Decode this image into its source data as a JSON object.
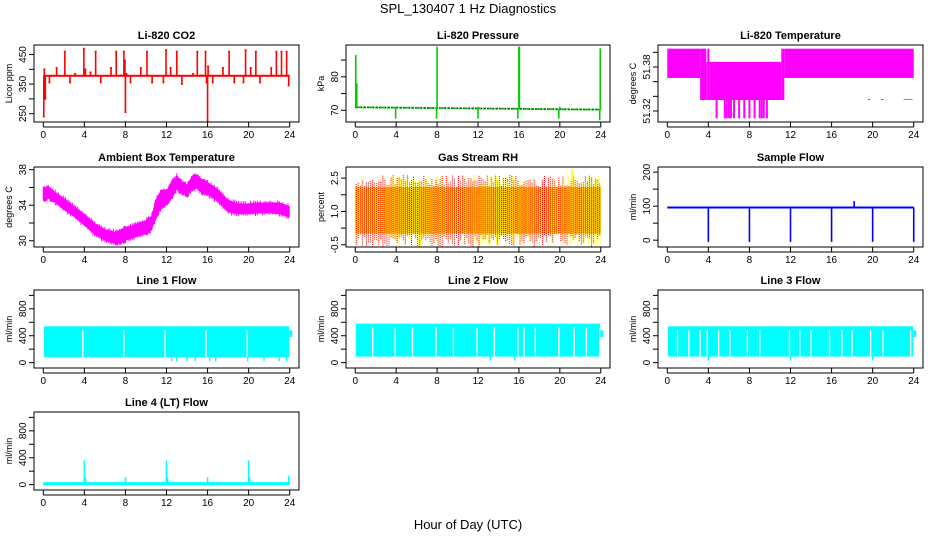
{
  "figure": {
    "title": "SPL_130407  1 Hz Diagnostics",
    "xlabel": "Hour of Day (UTC)"
  },
  "chart_data": [
    {
      "type": "line",
      "title": "Li-820 CO2",
      "ylabel": "Licor ppm",
      "color": "#ff0000",
      "xlim": [
        0,
        24
      ],
      "ylim": [
        222,
        482
      ],
      "xticks": [
        0,
        4,
        8,
        12,
        16,
        20,
        24
      ],
      "yticks": [
        250,
        300,
        350,
        400,
        450
      ],
      "ytick_labels": [
        "250",
        "",
        "350",
        "",
        "450"
      ],
      "baseline": 378,
      "noise": 3,
      "spikes": [
        [
          0.05,
          240
        ],
        [
          0.1,
          400
        ],
        [
          0.2,
          300
        ],
        [
          0.6,
          355
        ],
        [
          1.3,
          405
        ],
        [
          2.1,
          460
        ],
        [
          2.6,
          355
        ],
        [
          3.1,
          385
        ],
        [
          3.95,
          470
        ],
        [
          4.1,
          400
        ],
        [
          4.6,
          390
        ],
        [
          5.1,
          460
        ],
        [
          5.6,
          355
        ],
        [
          6.6,
          405
        ],
        [
          7.1,
          460
        ],
        [
          7.6,
          380
        ],
        [
          7.85,
          460
        ],
        [
          7.95,
          430
        ],
        [
          8.0,
          255
        ],
        [
          8.1,
          385
        ],
        [
          8.5,
          355
        ],
        [
          9.5,
          405
        ],
        [
          10.1,
          460
        ],
        [
          10.6,
          355
        ],
        [
          11.7,
          355
        ],
        [
          11.95,
          465
        ],
        [
          12.4,
          405
        ],
        [
          13.0,
          460
        ],
        [
          13.5,
          350
        ],
        [
          14.6,
          385
        ],
        [
          15.0,
          460
        ],
        [
          15.4,
          380
        ],
        [
          15.8,
          460
        ],
        [
          15.9,
          355
        ],
        [
          16.0,
          225
        ],
        [
          16.05,
          410
        ],
        [
          16.5,
          355
        ],
        [
          17.5,
          405
        ],
        [
          18.1,
          460
        ],
        [
          18.6,
          355
        ],
        [
          19.5,
          355
        ],
        [
          19.7,
          465
        ],
        [
          20.2,
          405
        ],
        [
          20.7,
          460
        ],
        [
          21.1,
          355
        ],
        [
          22.2,
          405
        ],
        [
          22.7,
          460
        ],
        [
          23.2,
          460
        ],
        [
          23.7,
          460
        ],
        [
          23.9,
          345
        ]
      ]
    },
    {
      "type": "line",
      "title": "Li-820 Pressure",
      "ylabel": "kPa",
      "color": "#00cc00",
      "xlim": [
        0,
        24
      ],
      "ylim": [
        66.5,
        89.5
      ],
      "xticks": [
        0,
        4,
        8,
        12,
        16,
        20,
        24
      ],
      "yticks": [
        70,
        75,
        80,
        85
      ],
      "ytick_labels": [
        "70",
        "",
        "80",
        ""
      ],
      "baseline_start": 70.9,
      "baseline_end": 70.2,
      "noise": 0.15,
      "spikes": [
        [
          0.05,
          86.5
        ],
        [
          0.15,
          78
        ],
        [
          3.95,
          67.5
        ],
        [
          4.05,
          71
        ],
        [
          8.0,
          89
        ],
        [
          7.95,
          67.5
        ],
        [
          12.0,
          67.5
        ],
        [
          12.05,
          71
        ],
        [
          15.9,
          67.5
        ],
        [
          16.0,
          89
        ],
        [
          16.05,
          89
        ],
        [
          19.9,
          67.5
        ],
        [
          20.0,
          71
        ],
        [
          23.9,
          67
        ],
        [
          23.95,
          88.5
        ]
      ]
    },
    {
      "type": "area",
      "title": "Li-820 Temperature",
      "ylabel": "degrees C",
      "color": "#ff00ff",
      "xlim": [
        0,
        24
      ],
      "ylim": [
        51.305,
        51.41
      ],
      "xticks": [
        0,
        4,
        8,
        12,
        16,
        20,
        24
      ],
      "yticks": [
        51.32,
        51.34,
        51.36,
        51.38,
        51.4
      ],
      "ytick_labels": [
        "51.32",
        "",
        "",
        "51.38",
        ""
      ],
      "bands": [
        {
          "x": [
            0.0,
            3.2
          ],
          "low": 51.365,
          "high": 51.405
        },
        {
          "x": [
            3.2,
            3.8
          ],
          "low": 51.335,
          "high": 51.405
        },
        {
          "x": [
            3.8,
            3.9
          ],
          "low": 51.335,
          "high": 51.387
        },
        {
          "x": [
            3.9,
            4.1
          ],
          "low": 51.335,
          "high": 51.405
        },
        {
          "x": [
            4.1,
            11.1
          ],
          "low": 51.335,
          "high": 51.387
        },
        {
          "x": [
            11.1,
            11.4
          ],
          "low": 51.335,
          "high": 51.405
        },
        {
          "x": [
            11.4,
            24.0
          ],
          "low": 51.365,
          "high": 51.405
        }
      ],
      "dips": [
        [
          4.8,
          51.31
        ],
        [
          5.6,
          51.31
        ],
        [
          5.8,
          51.31
        ],
        [
          6.0,
          51.31
        ],
        [
          6.2,
          51.31
        ],
        [
          6.5,
          51.31
        ],
        [
          7.0,
          51.31
        ],
        [
          7.5,
          51.31
        ],
        [
          8.0,
          51.31
        ],
        [
          8.5,
          51.31
        ],
        [
          9.0,
          51.31
        ],
        [
          9.2,
          51.31
        ],
        [
          9.4,
          51.31
        ],
        [
          9.7,
          51.31
        ],
        [
          19.6,
          51.335
        ],
        [
          19.7,
          51.335
        ],
        [
          20.9,
          51.335
        ],
        [
          21.0,
          51.335
        ],
        [
          23.1,
          51.335
        ],
        [
          23.3,
          51.335
        ],
        [
          23.5,
          51.335
        ],
        [
          23.7,
          51.335
        ],
        [
          23.8,
          51.335
        ]
      ]
    },
    {
      "type": "area",
      "title": "Ambient Box Temperature",
      "ylabel": "degrees C",
      "color": "#ff00ff",
      "xlim": [
        0,
        24
      ],
      "ylim": [
        29.3,
        38.3
      ],
      "xticks": [
        0,
        4,
        8,
        12,
        16,
        20,
        24
      ],
      "yticks": [
        30,
        32,
        34,
        36,
        38
      ],
      "ytick_labels": [
        "30",
        "",
        "34",
        "",
        "38"
      ],
      "x": [
        0,
        0.5,
        1,
        2,
        3,
        4,
        5,
        6,
        7,
        7.5,
        8,
        9,
        10,
        10.5,
        11,
        11.5,
        12,
        12.5,
        13,
        13.5,
        14,
        14.5,
        15,
        15.5,
        16,
        17,
        18,
        19,
        20,
        21,
        22,
        23,
        24
      ],
      "low": [
        34.6,
        34.8,
        34.4,
        33.5,
        32.7,
        31.7,
        30.7,
        30.0,
        29.7,
        29.8,
        30.0,
        30.4,
        30.8,
        31.1,
        32.6,
        33.8,
        34.0,
        34.8,
        35.8,
        35.4,
        35.1,
        35.8,
        35.9,
        35.3,
        35.2,
        34.4,
        33.2,
        33.0,
        33.0,
        33.1,
        33.1,
        33.0,
        32.6
      ],
      "high": [
        35.9,
        36.0,
        35.6,
        34.8,
        33.9,
        33.0,
        32.0,
        31.3,
        31.0,
        31.2,
        31.5,
        31.9,
        32.3,
        32.7,
        34.7,
        35.7,
        35.6,
        36.6,
        37.3,
        36.6,
        36.3,
        37.2,
        37.4,
        36.8,
        36.6,
        35.8,
        34.6,
        34.2,
        34.2,
        34.3,
        34.3,
        34.3,
        33.9
      ]
    },
    {
      "type": "area",
      "title": "Gas Stream RH",
      "ylabel": "percent",
      "colors": [
        "#ffa500",
        "#ff0000",
        "#ffff00"
      ],
      "color": "#ffa500",
      "xlim": [
        0,
        24
      ],
      "ylim": [
        -0.6,
        3.0
      ],
      "xticks": [
        0,
        4,
        8,
        12,
        16,
        20,
        24
      ],
      "yticks": [
        -0.5,
        0.25,
        1.0,
        1.75,
        2.5
      ],
      "ytick_labels": [
        "-0.5",
        "",
        "1.0",
        "",
        "2.5"
      ],
      "band_low": 0.0,
      "band_high": 2.1,
      "spike_max": 2.9,
      "spike_min": -0.7
    },
    {
      "type": "line",
      "title": "Sample Flow",
      "ylabel": "ml/min",
      "color": "#0000ff",
      "xlim": [
        0,
        24
      ],
      "ylim": [
        -20,
        215
      ],
      "xticks": [
        0,
        4,
        8,
        12,
        16,
        20,
        24
      ],
      "yticks": [
        0,
        50,
        100,
        150,
        200
      ],
      "ytick_labels": [
        "0",
        "",
        "100",
        "",
        "200"
      ],
      "baseline": 96,
      "noise": 2,
      "spikes": [
        [
          4.0,
          -5
        ],
        [
          8.0,
          -5
        ],
        [
          12.0,
          -5
        ],
        [
          16.0,
          -5
        ],
        [
          18.2,
          115
        ],
        [
          20.0,
          -5
        ],
        [
          24.0,
          -5
        ]
      ]
    },
    {
      "type": "area",
      "title": "Line 1 Flow",
      "ylabel": "ml/min",
      "color": "#00ffff",
      "xlim": [
        0,
        24
      ],
      "ylim": [
        -80,
        1080
      ],
      "xticks": [
        0,
        4,
        8,
        12,
        16,
        20,
        24
      ],
      "yticks": [
        0,
        200,
        400,
        600,
        800,
        1000
      ],
      "ytick_labels": [
        "0",
        "",
        "400",
        "",
        "800",
        ""
      ],
      "band_low": 80,
      "band_high": 540,
      "gaps": [
        3.85,
        7.85,
        11.85,
        15.85,
        19.85
      ],
      "dips": [
        12.5,
        13.0,
        14.0,
        14.8,
        16.2,
        16.8,
        19.9,
        21.5,
        23.0,
        23.7
      ]
    },
    {
      "type": "area",
      "title": "Line 2 Flow",
      "ylabel": "ml/min",
      "color": "#00ffff",
      "xlim": [
        0,
        24
      ],
      "ylim": [
        -80,
        1080
      ],
      "xticks": [
        0,
        4,
        8,
        12,
        16,
        20,
        24
      ],
      "yticks": [
        0,
        200,
        400,
        600,
        800,
        1000
      ],
      "ytick_labels": [
        "0",
        "",
        "400",
        "",
        "800",
        ""
      ],
      "band_low": 90,
      "band_high": 580,
      "gaps": [
        1.7,
        3.9,
        5.6,
        7.9,
        9.6,
        11.9,
        13.6,
        15.9,
        16.5,
        17.6,
        19.9,
        21.4,
        22.6,
        23.9
      ],
      "dips": [
        13.2,
        15.6
      ]
    },
    {
      "type": "area",
      "title": "Line 3 Flow",
      "ylabel": "ml/min",
      "color": "#00ffff",
      "xlim": [
        0,
        24
      ],
      "ylim": [
        -80,
        1080
      ],
      "xticks": [
        0,
        4,
        8,
        12,
        16,
        20,
        24
      ],
      "yticks": [
        0,
        200,
        400,
        600,
        800,
        1000
      ],
      "ytick_labels": [
        "0",
        "",
        "400",
        "",
        "800",
        ""
      ],
      "band_low": 90,
      "band_high": 540,
      "gaps": [
        1.0,
        2.1,
        3.2,
        3.9,
        5.0,
        6.1,
        7.8,
        9.0,
        11.9,
        12.9,
        14.0,
        15.8,
        17.0,
        18.0,
        19.8,
        21.0,
        23.7
      ],
      "dips": [
        4.0,
        12.0,
        20.0
      ]
    },
    {
      "type": "line",
      "title": "Line 4 (LT) Flow",
      "ylabel": "ml/min",
      "color": "#00ffff",
      "xlim": [
        0,
        24
      ],
      "ylim": [
        -80,
        1080
      ],
      "xticks": [
        0,
        4,
        8,
        12,
        16,
        20,
        24
      ],
      "yticks": [
        0,
        200,
        400,
        600,
        800,
        1000
      ],
      "ytick_labels": [
        "0",
        "",
        "400",
        "",
        "800",
        ""
      ],
      "baseline": 15,
      "noise": 0,
      "spikes": [
        [
          4.0,
          360
        ],
        [
          4.1,
          110
        ],
        [
          8.0,
          110
        ],
        [
          12.0,
          360
        ],
        [
          12.1,
          110
        ],
        [
          16.0,
          110
        ],
        [
          20.0,
          360
        ],
        [
          20.1,
          110
        ],
        [
          23.9,
          130
        ]
      ]
    }
  ]
}
